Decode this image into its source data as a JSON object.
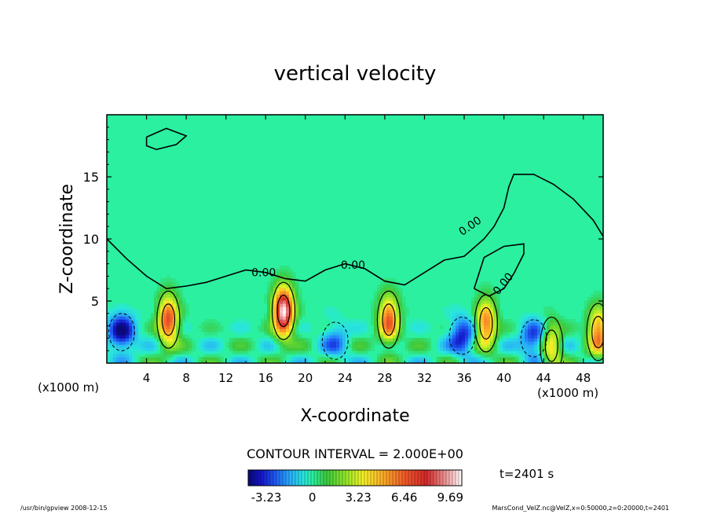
{
  "chart_data": {
    "type": "heatmap",
    "title": "vertical velocity",
    "xlabel": "X-coordinate",
    "ylabel": "Z-coordinate",
    "x_unit": "(x1000 m)",
    "y_unit": "(x1000 m)",
    "xlim": [
      0,
      50
    ],
    "ylim": [
      0,
      20
    ],
    "x_ticks": [
      "4",
      "8",
      "12",
      "16",
      "20",
      "24",
      "28",
      "32",
      "36",
      "40",
      "44",
      "48"
    ],
    "y_ticks": [
      "5",
      "10",
      "15"
    ],
    "contour_interval_text": "CONTOUR INTERVAL = 2.000E+00",
    "contour_labels": [
      "0.00",
      "0.00",
      "0.00",
      "0.00"
    ],
    "time_text": "t=2401 s",
    "colorbar": {
      "range": [
        -4.5,
        10.5
      ],
      "tick_labels": [
        "-3.23",
        "0",
        "3.23",
        "6.46",
        "9.69"
      ],
      "tick_values": [
        -3.23,
        0,
        3.23,
        6.46,
        9.69
      ]
    },
    "updrafts": [
      {
        "x": 6.2,
        "z": 3.5,
        "w": 7.0
      },
      {
        "x": 17.8,
        "z": 4.2,
        "w": 10.5
      },
      {
        "x": 28.4,
        "z": 3.5,
        "w": 6.5
      },
      {
        "x": 38.2,
        "z": 3.2,
        "w": 6.0
      },
      {
        "x": 44.8,
        "z": 1.4,
        "w": 4.0
      },
      {
        "x": 49.5,
        "z": 2.5,
        "w": 6.0
      }
    ],
    "downdrafts": [
      {
        "x": 1.5,
        "z": 2.5,
        "w": -4.5
      },
      {
        "x": 35.8,
        "z": 2.2,
        "w": -3.5
      },
      {
        "x": 43.0,
        "z": 2.0,
        "w": -3.2
      },
      {
        "x": 23.0,
        "z": 1.8,
        "w": -2.0
      }
    ],
    "zero_contour": [
      [
        0,
        10.0
      ],
      [
        2,
        8.4
      ],
      [
        4,
        7.0
      ],
      [
        6,
        6.0
      ],
      [
        8,
        6.2
      ],
      [
        10,
        6.5
      ],
      [
        12,
        7.0
      ],
      [
        14,
        7.5
      ],
      [
        16,
        7.3
      ],
      [
        18,
        6.8
      ],
      [
        20,
        6.6
      ],
      [
        22,
        7.5
      ],
      [
        24,
        8.0
      ],
      [
        26,
        7.6
      ],
      [
        28,
        6.6
      ],
      [
        30,
        6.3
      ],
      [
        32,
        7.3
      ],
      [
        34,
        8.3
      ],
      [
        36,
        8.6
      ],
      [
        38,
        10.0
      ],
      [
        39,
        11.0
      ],
      [
        40,
        12.5
      ],
      [
        40.5,
        14.2
      ],
      [
        41,
        15.2
      ],
      [
        43,
        15.2
      ],
      [
        45,
        14.4
      ],
      [
        47,
        13.2
      ],
      [
        49,
        11.5
      ],
      [
        50,
        10.2
      ]
    ],
    "zero_contour_islands": [
      [
        [
          4,
          18.2
        ],
        [
          6,
          18.9
        ],
        [
          8,
          18.3
        ],
        [
          7,
          17.6
        ],
        [
          5,
          17.2
        ],
        [
          4,
          17.5
        ],
        [
          4,
          18.2
        ]
      ],
      [
        [
          37,
          6.0
        ],
        [
          38,
          8.5
        ],
        [
          40,
          9.4
        ],
        [
          42,
          9.6
        ],
        [
          42,
          8.8
        ],
        [
          41,
          7.2
        ],
        [
          40,
          6.0
        ],
        [
          38.5,
          5.4
        ],
        [
          37,
          6.0
        ]
      ]
    ]
  },
  "footer": {
    "left_text": "/usr/bin/gpview   2008-12-15",
    "right_text": "MarsCond_VelZ.nc@VelZ,x=0:50000,z=0:20000,t=2401"
  }
}
